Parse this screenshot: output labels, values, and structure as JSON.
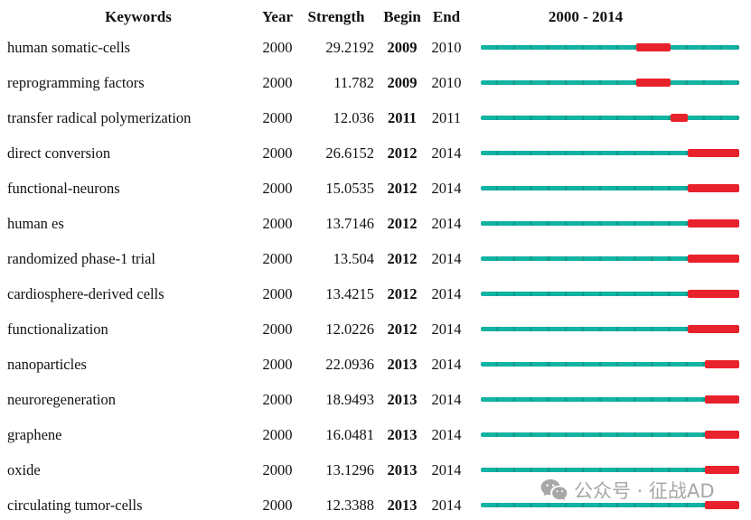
{
  "header": {
    "keywords": "Keywords",
    "year": "Year",
    "strength": "Strength",
    "begin": "Begin",
    "end": "End",
    "timeline": "2000 - 2014"
  },
  "colors": {
    "teal_line": "#12b3a3",
    "teal_segment_dark": "#0e9e90",
    "burst_red": "#e8222c",
    "watermark_gray": "#9b9b9b",
    "text": "#111111",
    "background": "#ffffff"
  },
  "watermark": {
    "icon": "wechat-icon",
    "text": "公众号 · 征战AD"
  },
  "chart_data": {
    "type": "table",
    "title": "2000 - 2014",
    "description": "Keyword citation burst timeline: teal line spans full 2000-2014 period, red segment marks burst interval from Begin to End year",
    "columns": [
      "Keywords",
      "Year",
      "Strength",
      "Begin",
      "End",
      "2000 - 2014"
    ],
    "timeline_range": [
      2000,
      2014
    ],
    "rows": [
      {
        "keyword": "human somatic-cells",
        "year": "2000",
        "strength": "29.2192",
        "begin": 2009,
        "end": 2010
      },
      {
        "keyword": "reprogramming factors",
        "year": "2000",
        "strength": "11.782",
        "begin": 2009,
        "end": 2010
      },
      {
        "keyword": "transfer radical polymerization",
        "year": "2000",
        "strength": "12.036",
        "begin": 2011,
        "end": 2011
      },
      {
        "keyword": "direct conversion",
        "year": "2000",
        "strength": "26.6152",
        "begin": 2012,
        "end": 2014
      },
      {
        "keyword": "functional-neurons",
        "year": "2000",
        "strength": "15.0535",
        "begin": 2012,
        "end": 2014
      },
      {
        "keyword": "human es",
        "year": "2000",
        "strength": "13.7146",
        "begin": 2012,
        "end": 2014
      },
      {
        "keyword": "randomized phase-1 trial",
        "year": "2000",
        "strength": "13.504",
        "begin": 2012,
        "end": 2014
      },
      {
        "keyword": "cardiosphere-derived cells",
        "year": "2000",
        "strength": "13.4215",
        "begin": 2012,
        "end": 2014
      },
      {
        "keyword": "functionalization",
        "year": "2000",
        "strength": "12.0226",
        "begin": 2012,
        "end": 2014
      },
      {
        "keyword": "nanoparticles",
        "year": "2000",
        "strength": "22.0936",
        "begin": 2013,
        "end": 2014
      },
      {
        "keyword": "neuroregeneration",
        "year": "2000",
        "strength": "18.9493",
        "begin": 2013,
        "end": 2014
      },
      {
        "keyword": "graphene",
        "year": "2000",
        "strength": "16.0481",
        "begin": 2013,
        "end": 2014
      },
      {
        "keyword": "oxide",
        "year": "2000",
        "strength": "13.1296",
        "begin": 2013,
        "end": 2014
      },
      {
        "keyword": "circulating tumor-cells",
        "year": "2000",
        "strength": "12.3388",
        "begin": 2013,
        "end": 2014
      }
    ]
  }
}
